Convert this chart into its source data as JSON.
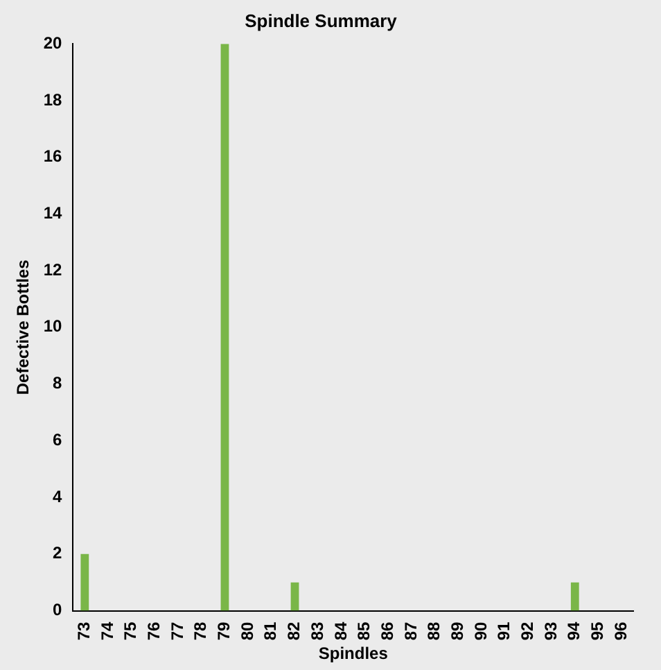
{
  "chart_data": {
    "type": "bar",
    "title": "Spindle Summary",
    "xlabel": "Spindles",
    "ylabel": "Defective Bottles",
    "categories": [
      "73",
      "74",
      "75",
      "76",
      "77",
      "78",
      "79",
      "80",
      "81",
      "82",
      "83",
      "84",
      "85",
      "86",
      "87",
      "88",
      "89",
      "90",
      "91",
      "92",
      "93",
      "94",
      "95",
      "96"
    ],
    "values": [
      2,
      0,
      0,
      0,
      0,
      0,
      20,
      0,
      0,
      1,
      0,
      0,
      0,
      0,
      0,
      0,
      0,
      0,
      0,
      0,
      0,
      1,
      0,
      0
    ],
    "color": "#7ab648",
    "ylim": [
      0,
      20
    ],
    "yticks": [
      0,
      2,
      4,
      6,
      8,
      10,
      12,
      14,
      16,
      18,
      20
    ],
    "grid": false,
    "legend": false
  }
}
